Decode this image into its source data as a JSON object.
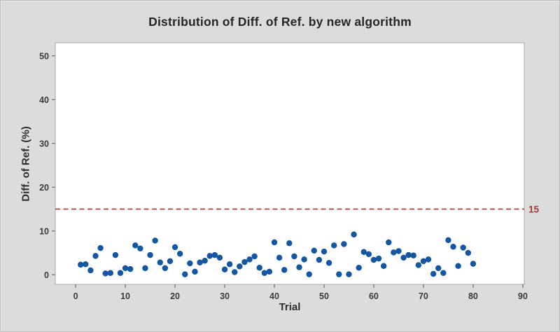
{
  "window": {
    "background_color": "#dcdcdc"
  },
  "chart": {
    "title": "Distribution of Diff. of Ref. by new algorithm",
    "xlabel": "Trial",
    "ylabel": "Diff. of Ref. (%)",
    "ref_line_label": "15"
  },
  "chart_data": {
    "type": "scatter",
    "title": "Distribution of Diff. of Ref. by new algorithm",
    "xlabel": "Trial",
    "ylabel": "Diff. of Ref. (%)",
    "xlim": [
      -4.1,
      90.3
    ],
    "ylim": [
      -2.2,
      53.0
    ],
    "x_ticks": [
      0,
      10,
      20,
      30,
      40,
      50,
      60,
      70,
      80,
      90
    ],
    "y_ticks": [
      0,
      10,
      20,
      30,
      40,
      50
    ],
    "grid": false,
    "legend": null,
    "point_color": "#1456a1",
    "point_radius": 4.2,
    "plot_bg": "#ffffff",
    "plot_border": "#a9a9a9",
    "reference_line": {
      "value": 15,
      "label": "15",
      "color": "#b2413e",
      "style": "dashed"
    },
    "x": [
      1,
      2,
      3,
      4,
      5,
      6,
      7,
      8,
      9,
      10,
      11,
      12,
      13,
      14,
      15,
      16,
      17,
      18,
      19,
      20,
      21,
      22,
      23,
      24,
      25,
      26,
      27,
      28,
      29,
      30,
      31,
      32,
      33,
      34,
      35,
      36,
      37,
      38,
      39,
      40,
      41,
      42,
      43,
      44,
      45,
      46,
      47,
      48,
      49,
      50,
      51,
      52,
      53,
      54,
      55,
      56,
      57,
      58,
      59,
      60,
      61,
      62,
      63,
      64,
      65,
      66,
      67,
      68,
      69,
      70,
      71,
      72,
      73,
      74,
      75,
      76,
      77,
      78,
      79,
      80
    ],
    "y": [
      2.3,
      2.4,
      1.0,
      4.3,
      6.1,
      0.3,
      0.4,
      4.5,
      0.4,
      1.5,
      1.3,
      6.7,
      6.0,
      1.5,
      4.5,
      7.8,
      2.8,
      1.5,
      3.1,
      6.3,
      4.8,
      0.1,
      2.6,
      0.7,
      2.8,
      3.2,
      4.3,
      4.5,
      3.9,
      1.2,
      2.4,
      0.6,
      1.9,
      2.9,
      3.5,
      4.2,
      1.6,
      0.4,
      0.7,
      7.4,
      3.9,
      1.1,
      7.2,
      4.2,
      1.7,
      3.5,
      0.1,
      5.5,
      3.4,
      5.3,
      2.7,
      6.7,
      0.1,
      7.0,
      0.1,
      9.2,
      1.6,
      5.2,
      4.7,
      3.4,
      3.7,
      2.0,
      7.4,
      5.1,
      5.4,
      3.9,
      4.5,
      4.4,
      2.2,
      3.1,
      3.5,
      0.2,
      1.5,
      0.4,
      7.9,
      6.4,
      2.0,
      6.2,
      5.0,
      2.5
    ]
  }
}
